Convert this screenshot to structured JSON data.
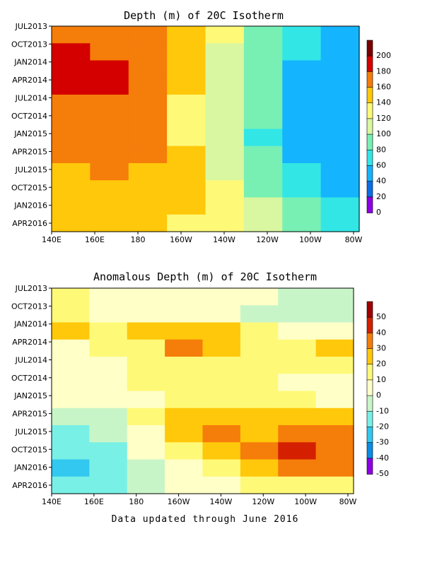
{
  "chart_data": [
    {
      "type": "heatmap",
      "title": "Depth (m) of 20C Isotherm",
      "x_ticks": [
        "140E",
        "160E",
        "180",
        "160W",
        "140W",
        "120W",
        "100W",
        "80W"
      ],
      "y_ticks": [
        "JUL2013",
        "OCT2013",
        "JAN2014",
        "APR2014",
        "JUL2014",
        "OCT2014",
        "JAN2015",
        "APR2015",
        "JUL2015",
        "OCT2015",
        "JAN2016",
        "APR2016"
      ],
      "legend_levels": [
        200,
        180,
        160,
        140,
        120,
        100,
        80,
        60,
        40,
        20,
        0
      ],
      "legend_colors": [
        "#7a0000",
        "#d40000",
        "#f57d0a",
        "#ffc80a",
        "#fff978",
        "#d8f7a0",
        "#78f0b4",
        "#32e6e6",
        "#14b4ff",
        "#0a6ee6",
        "#8c00e6"
      ],
      "legend_placement": "right",
      "columns_lon": [
        "140E",
        "160E",
        "180",
        "160W",
        "140W",
        "120W",
        "100W",
        "80W"
      ],
      "values_m": [
        [
          160,
          160,
          160,
          150,
          120,
          95,
          70,
          55
        ],
        [
          185,
          175,
          160,
          140,
          115,
          85,
          60,
          50
        ],
        [
          190,
          185,
          165,
          140,
          110,
          80,
          55,
          45
        ],
        [
          185,
          180,
          165,
          140,
          110,
          80,
          55,
          45
        ],
        [
          170,
          170,
          160,
          135,
          110,
          80,
          55,
          45
        ],
        [
          165,
          170,
          160,
          135,
          110,
          80,
          55,
          40
        ],
        [
          160,
          170,
          160,
          135,
          105,
          75,
          55,
          40
        ],
        [
          160,
          165,
          160,
          140,
          115,
          80,
          55,
          45
        ],
        [
          155,
          160,
          155,
          140,
          115,
          85,
          60,
          45
        ],
        [
          155,
          150,
          150,
          140,
          120,
          95,
          70,
          55
        ],
        [
          150,
          150,
          150,
          140,
          125,
          100,
          80,
          60
        ],
        [
          150,
          150,
          145,
          135,
          125,
          105,
          85,
          65
        ]
      ]
    },
    {
      "type": "heatmap",
      "title": "Anomalous Depth (m) of 20C Isotherm",
      "x_ticks": [
        "140E",
        "160E",
        "180",
        "160W",
        "140W",
        "120W",
        "100W",
        "80W"
      ],
      "y_ticks": [
        "JUL2013",
        "OCT2013",
        "JAN2014",
        "APR2014",
        "JUL2014",
        "OCT2014",
        "JAN2015",
        "APR2015",
        "JUL2015",
        "OCT2015",
        "JAN2016",
        "APR2016"
      ],
      "legend_levels": [
        50,
        40,
        30,
        20,
        10,
        0,
        -10,
        -20,
        -30,
        -40,
        -50
      ],
      "legend_colors": [
        "#a00000",
        "#d42000",
        "#f57d0a",
        "#ffc80a",
        "#fff978",
        "#ffffc8",
        "#c8f5c8",
        "#78f0e6",
        "#32c8f0",
        "#0a8ce6",
        "#8c00e6"
      ],
      "legend_placement": "right",
      "columns_lon": [
        "140E",
        "160E",
        "180",
        "160W",
        "140W",
        "120W",
        "100W",
        "80W"
      ],
      "values_m": [
        [
          10,
          5,
          5,
          5,
          0,
          0,
          -5,
          -5
        ],
        [
          10,
          5,
          5,
          5,
          0,
          -5,
          -5,
          -5
        ],
        [
          20,
          15,
          20,
          25,
          20,
          10,
          5,
          5
        ],
        [
          5,
          10,
          15,
          30,
          25,
          15,
          15,
          25
        ],
        [
          0,
          5,
          10,
          15,
          10,
          15,
          10,
          10
        ],
        [
          5,
          5,
          10,
          10,
          10,
          10,
          5,
          5
        ],
        [
          0,
          0,
          5,
          10,
          10,
          10,
          10,
          5
        ],
        [
          -10,
          -5,
          10,
          25,
          25,
          25,
          20,
          20
        ],
        [
          -15,
          -10,
          5,
          20,
          30,
          25,
          30,
          35
        ],
        [
          -20,
          -15,
          0,
          10,
          20,
          30,
          40,
          30
        ],
        [
          -25,
          -20,
          -5,
          5,
          15,
          20,
          30,
          30
        ],
        [
          -20,
          -20,
          -10,
          0,
          5,
          10,
          15,
          15
        ]
      ]
    }
  ],
  "footer": "Data updated through June 2016"
}
